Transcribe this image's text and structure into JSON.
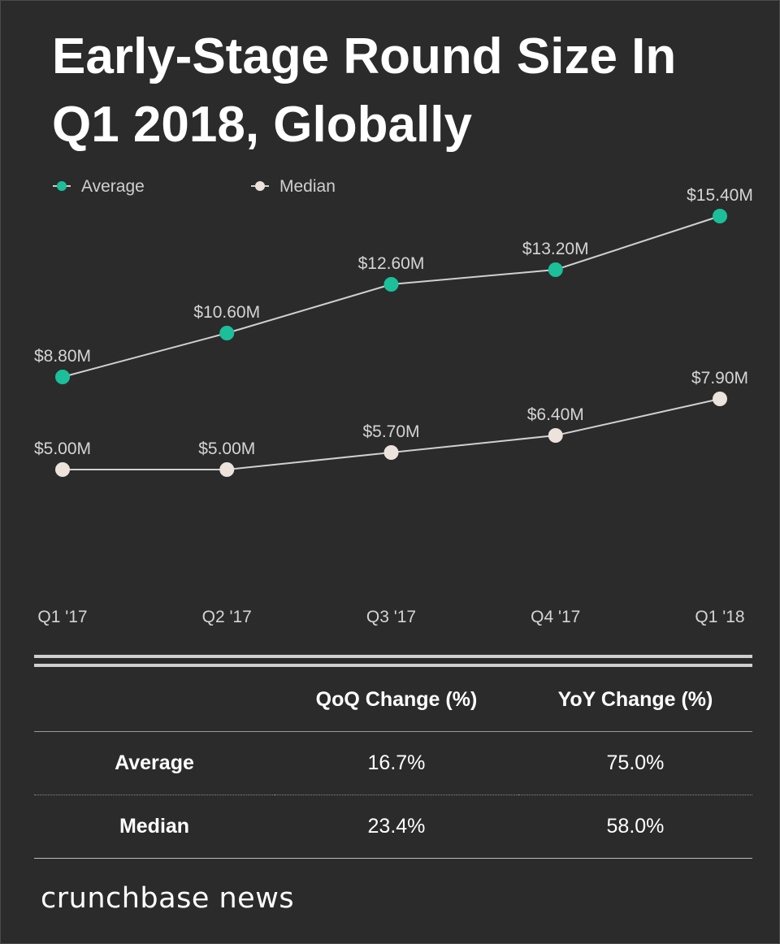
{
  "title": "Early-Stage Round Size In Q1 2018, Globally",
  "chart_data": {
    "type": "line",
    "title": "Early-Stage Round Size In Q1 2018, Globally",
    "categories": [
      "Q1 '17",
      "Q2 '17",
      "Q3 '17",
      "Q4 '17",
      "Q1 '18"
    ],
    "series": [
      {
        "name": "Average",
        "values": [
          8.8,
          10.6,
          12.6,
          13.2,
          15.4
        ],
        "labels": [
          "$8.80M",
          "$10.60M",
          "$12.60M",
          "$13.20M",
          "$15.40M"
        ],
        "color": "#1bbf9a"
      },
      {
        "name": "Median",
        "values": [
          5.0,
          5.0,
          5.7,
          6.4,
          7.9
        ],
        "labels": [
          "$5.00M",
          "$5.00M",
          "$5.70M",
          "$6.40M",
          "$7.90M"
        ],
        "color": "#ebe3dc"
      }
    ],
    "unit": "$M",
    "grid": false,
    "legend_position": "top-left"
  },
  "table": {
    "headers": [
      "",
      "QoQ Change (%)",
      "YoY Change (%)"
    ],
    "rows": [
      {
        "label": "Average",
        "qoq": "16.7%",
        "yoy": "75.0%"
      },
      {
        "label": "Median",
        "qoq": "23.4%",
        "yoy": "58.0%"
      }
    ]
  },
  "brand": "crunchbase news",
  "colors": {
    "background": "#2b2b2b",
    "average": "#1bbf9a",
    "median": "#ebe3dc",
    "line": "#d0d0d0"
  }
}
